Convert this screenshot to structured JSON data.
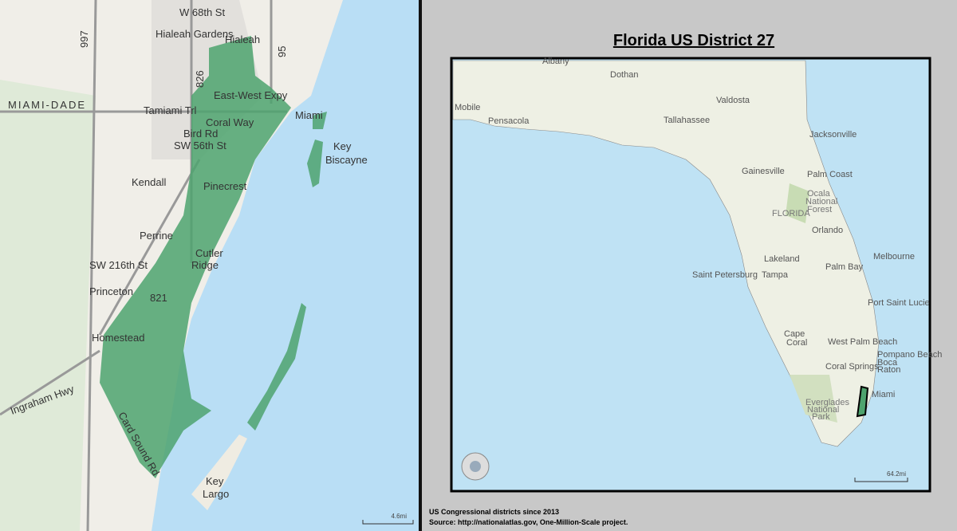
{
  "left_map": {
    "labels": [
      "W 68th St",
      "Hialeah Gardens",
      "Hialeah",
      "997",
      "826",
      "95",
      "MIAMI-DADE",
      "East-West Expy",
      "Tamiami Trl",
      "Coral Way",
      "Bird Rd",
      "SW 56th St",
      "Miami",
      "Key",
      "Biscayne",
      "Kendall",
      "Pinecrest",
      "Perrine",
      "Cutler",
      "Ridge",
      "SW 216th St",
      "Princeton",
      "821",
      "Homestead",
      "Ingraham Hwy",
      "Card Sound Rd",
      "Key",
      "Largo"
    ],
    "scale": "4.6mi"
  },
  "right_map": {
    "title": "Florida US District 27",
    "labels": [
      "Albany",
      "Dothan",
      "Mobile",
      "Pensacola",
      "Valdosta",
      "Tallahassee",
      "Jacksonville",
      "Gainesville",
      "Palm Coast",
      "Ocala",
      "National",
      "Forest",
      "FLORIDA",
      "Orlando",
      "Melbourne",
      "Palm Bay",
      "Lakeland",
      "Saint Petersburg",
      "Tampa",
      "Port Saint Lucie",
      "Cape",
      "Coral",
      "West Palm Beach",
      "Pompano Beach",
      "Boca",
      "Raton",
      "Coral Springs",
      "Miami",
      "Everglades",
      "National",
      "Park"
    ],
    "scale": "64.2mi"
  },
  "footer": {
    "line1": "US Congressional districts since 2013",
    "line2": "Source: http://nationalatlas.gov, One-Million-Scale project."
  }
}
